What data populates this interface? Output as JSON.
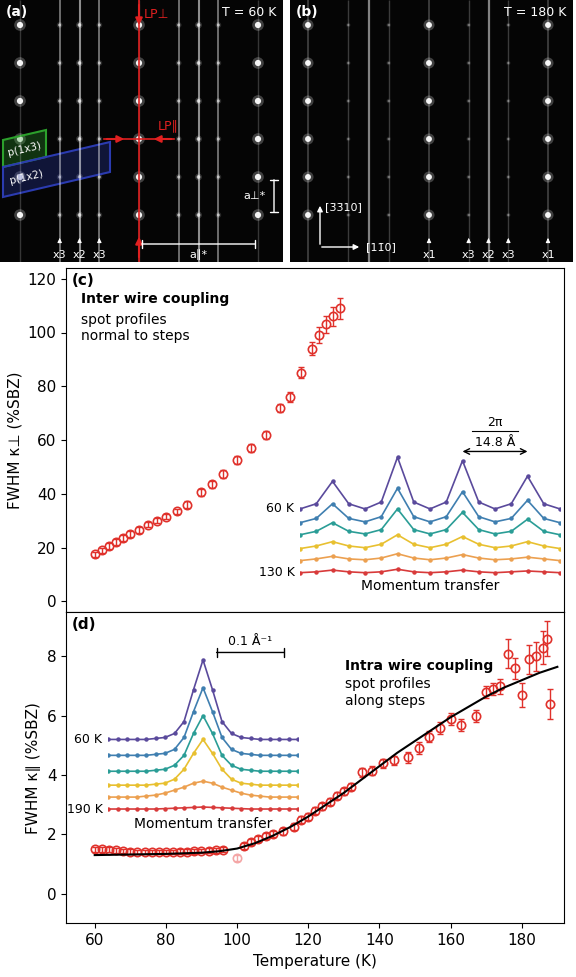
{
  "panels": [
    {
      "label": "(a)",
      "temperature": "T = 60 K",
      "line_profiles": [
        "LP⊥",
        "LP∥"
      ],
      "reciprocal_vectors": [
        "a∥*",
        "a⊥*"
      ],
      "domains": [
        {
          "text": "p(1x3)",
          "color": "#2ca02c"
        },
        {
          "text": "p(1x2)",
          "color": "#2b3bb0"
        }
      ],
      "streak_labels": [
        "x3",
        "x2",
        "x3"
      ]
    },
    {
      "label": "(b)",
      "temperature": "T = 180 K",
      "directions": [
        "[3̄3̄10]",
        "[11̄0]"
      ],
      "streak_labels": [
        "x1",
        "x3",
        "x2",
        "x3",
        "x1"
      ]
    }
  ],
  "chart_data": [
    {
      "type": "scatter",
      "panel": "(c)",
      "title": "Inter wire coupling",
      "subtitle": "spot profiles\nnormal to steps",
      "y_label": "FWHM κ⊥ (%SBZ)",
      "xlim": [
        52,
        192
      ],
      "xticks": [
        60,
        80,
        100,
        120,
        140,
        160,
        180
      ],
      "ylim": [
        -4,
        124
      ],
      "yticks": [
        0,
        20,
        40,
        60,
        80,
        100,
        120
      ],
      "tick_labels": "y",
      "series": [
        {
          "color": "#e0312b",
          "marker": "circle",
          "x": [
            60,
            62,
            64,
            66,
            68,
            70,
            72.5,
            75,
            77.5,
            80,
            83,
            86,
            90,
            93,
            96,
            100,
            104,
            108,
            112,
            115,
            118,
            121,
            123,
            125,
            127,
            129
          ],
          "values": [
            17.5,
            19,
            20.5,
            22,
            23.5,
            25,
            26.5,
            28.5,
            30,
            31.5,
            33.5,
            36,
            40.5,
            43.5,
            47.5,
            52.5,
            57,
            62,
            72,
            76,
            85,
            94,
            99,
            103,
            106,
            109
          ],
          "errors": [
            1,
            1,
            1,
            1,
            1,
            1,
            1,
            1,
            1,
            1,
            1,
            1.2,
            1.2,
            1.2,
            1.5,
            1.5,
            1.5,
            1.5,
            1.5,
            2,
            2,
            2.5,
            3,
            3,
            3.5,
            4
          ]
        }
      ],
      "inset": {
        "type": "line",
        "marker": "circle",
        "tick_labels": false,
        "x_label": "Momentum transfer",
        "temperature_labels": [
          "60 K",
          "130 K"
        ],
        "spacing_label": {
          "numerator": "2π",
          "denominator": "14.8 Å"
        },
        "x": [
          0,
          2.5,
          5,
          7.5,
          10,
          12.5,
          15,
          17.5,
          20,
          22.5,
          25,
          27.5,
          30,
          32.5,
          35,
          37.5,
          40
        ],
        "series": [
          {
            "color": "#5a4a9c",
            "values": [
              5.0,
              5.3,
              6.6,
              5.3,
              5.0,
              5.4,
              8.0,
              5.4,
              5.0,
              5.4,
              7.8,
              5.4,
              5.0,
              5.3,
              6.9,
              5.3,
              5.0
            ]
          },
          {
            "color": "#3f7fb0",
            "values": [
              4.2,
              4.45,
              5.3,
              4.45,
              4.25,
              4.55,
              6.2,
              4.55,
              4.25,
              4.55,
              6.0,
              4.55,
              4.25,
              4.45,
              5.5,
              4.45,
              4.2
            ]
          },
          {
            "color": "#2a9d96",
            "values": [
              3.5,
              3.7,
              4.2,
              3.7,
              3.55,
              3.8,
              5.0,
              3.8,
              3.55,
              3.8,
              4.8,
              3.8,
              3.55,
              3.7,
              4.4,
              3.7,
              3.5
            ]
          },
          {
            "color": "#e8c030",
            "values": [
              2.7,
              2.85,
              3.1,
              2.85,
              2.75,
              2.95,
              3.5,
              2.95,
              2.75,
              2.95,
              3.4,
              2.95,
              2.75,
              2.85,
              3.1,
              2.85,
              2.7
            ]
          },
          {
            "color": "#eca050",
            "values": [
              2.0,
              2.1,
              2.25,
              2.1,
              2.05,
              2.15,
              2.4,
              2.15,
              2.05,
              2.15,
              2.35,
              2.15,
              2.05,
              2.1,
              2.2,
              2.1,
              2.0
            ]
          },
          {
            "color": "#d83a3a",
            "values": [
              1.3,
              1.35,
              1.45,
              1.35,
              1.3,
              1.35,
              1.5,
              1.35,
              1.3,
              1.35,
              1.45,
              1.35,
              1.3,
              1.35,
              1.4,
              1.35,
              1.3
            ]
          }
        ]
      }
    },
    {
      "type": "scatter",
      "panel": "(d)",
      "title": "Intra wire coupling",
      "subtitle": "spot profiles\nalong steps",
      "x_label": "Temperature (K)",
      "y_label": "FWHM κ∥ (%SBZ)",
      "xlim": [
        52,
        192
      ],
      "xticks": [
        60,
        80,
        100,
        120,
        140,
        160,
        180
      ],
      "ylim": [
        -1,
        9.5
      ],
      "yticks": [
        0,
        2,
        4,
        6,
        8
      ],
      "series": [
        {
          "type": "scatter",
          "color": "#e0312b",
          "marker": "circle",
          "x": [
            60,
            62,
            64,
            66,
            68,
            70,
            72,
            74,
            76,
            78,
            80,
            82,
            84,
            86,
            88,
            90,
            92,
            94,
            96,
            102,
            104,
            106,
            108,
            110,
            113,
            116,
            118,
            120,
            122,
            124,
            126,
            128,
            130,
            132,
            135,
            138,
            141,
            144,
            148,
            151,
            154,
            157,
            160,
            163,
            167,
            170,
            172,
            174,
            176,
            178,
            180,
            182,
            184,
            186,
            187,
            188
          ],
          "values": [
            1.5,
            1.5,
            1.48,
            1.46,
            1.44,
            1.42,
            1.4,
            1.4,
            1.4,
            1.4,
            1.4,
            1.4,
            1.42,
            1.42,
            1.43,
            1.44,
            1.45,
            1.46,
            1.48,
            1.6,
            1.75,
            1.85,
            1.95,
            2.0,
            2.1,
            2.25,
            2.5,
            2.6,
            2.8,
            2.95,
            3.1,
            3.3,
            3.45,
            3.6,
            4.1,
            4.15,
            4.4,
            4.5,
            4.6,
            4.9,
            5.3,
            5.6,
            5.9,
            5.7,
            6.0,
            6.8,
            6.9,
            7.0,
            8.1,
            7.6,
            6.7,
            7.9,
            8.0,
            8.3,
            8.6,
            6.4
          ],
          "errors": [
            0.08,
            0.08,
            0.08,
            0.08,
            0.08,
            0.08,
            0.08,
            0.08,
            0.08,
            0.08,
            0.08,
            0.08,
            0.08,
            0.08,
            0.08,
            0.08,
            0.08,
            0.08,
            0.08,
            0.1,
            0.1,
            0.1,
            0.1,
            0.1,
            0.12,
            0.12,
            0.12,
            0.12,
            0.12,
            0.12,
            0.12,
            0.12,
            0.12,
            0.12,
            0.15,
            0.15,
            0.15,
            0.15,
            0.18,
            0.2,
            0.2,
            0.2,
            0.2,
            0.2,
            0.2,
            0.2,
            0.2,
            0.25,
            0.5,
            0.35,
            0.4,
            0.5,
            0.5,
            0.55,
            0.6,
            0.5
          ]
        },
        {
          "type": "scatter",
          "color": "#f4a6a6",
          "marker": "circle",
          "x": [
            100
          ],
          "values": [
            1.2
          ],
          "errors": [
            0.1
          ]
        },
        {
          "type": "line",
          "color": "#000000",
          "x": [
            60,
            65,
            70,
            75,
            80,
            85,
            90,
            95,
            100,
            105,
            110,
            115,
            120,
            125,
            130,
            135,
            140,
            145,
            150,
            155,
            160,
            165,
            170,
            175,
            180,
            185,
            190
          ],
          "values": [
            1.3,
            1.31,
            1.32,
            1.33,
            1.34,
            1.36,
            1.38,
            1.43,
            1.52,
            1.7,
            1.95,
            2.25,
            2.6,
            3.0,
            3.4,
            3.85,
            4.3,
            4.75,
            5.15,
            5.55,
            5.95,
            6.3,
            6.65,
            6.95,
            7.2,
            7.45,
            7.65
          ]
        }
      ],
      "inset": {
        "type": "line",
        "marker": "circle",
        "tick_labels": false,
        "x_label": "Momentum transfer",
        "temperature_labels": [
          "60 K",
          "190 K"
        ],
        "scale_bar": {
          "length": 0.1,
          "label": "0.1 Å⁻¹"
        },
        "x": [
          -0.14,
          -0.126,
          -0.112,
          -0.098,
          -0.084,
          -0.07,
          -0.056,
          -0.042,
          -0.028,
          -0.014,
          0,
          0.014,
          0.028,
          0.042,
          0.056,
          0.07,
          0.084,
          0.098,
          0.112,
          0.126,
          0.14
        ],
        "series": [
          {
            "color": "#5a4a9c",
            "values": [
              5.0,
              5.0,
              5.0,
              5.0,
              5.0,
              5.05,
              5.1,
              5.3,
              5.9,
              7.5,
              9.0,
              7.5,
              5.9,
              5.3,
              5.1,
              5.05,
              5.0,
              5.0,
              5.0,
              5.0,
              5.0
            ]
          },
          {
            "color": "#3f7fb0",
            "values": [
              4.2,
              4.2,
              4.2,
              4.2,
              4.2,
              4.25,
              4.3,
              4.5,
              5.1,
              6.4,
              7.6,
              6.4,
              5.1,
              4.5,
              4.3,
              4.25,
              4.2,
              4.2,
              4.2,
              4.2,
              4.2
            ]
          },
          {
            "color": "#2a9d96",
            "values": [
              3.4,
              3.4,
              3.4,
              3.4,
              3.4,
              3.45,
              3.5,
              3.7,
              4.2,
              5.3,
              6.2,
              5.3,
              4.2,
              3.7,
              3.5,
              3.45,
              3.4,
              3.4,
              3.4,
              3.4,
              3.4
            ]
          },
          {
            "color": "#e8c030",
            "values": [
              2.7,
              2.7,
              2.7,
              2.7,
              2.7,
              2.75,
              2.8,
              3.0,
              3.5,
              4.3,
              5.0,
              4.3,
              3.5,
              3.0,
              2.8,
              2.75,
              2.7,
              2.7,
              2.7,
              2.7,
              2.7
            ]
          },
          {
            "color": "#eca050",
            "values": [
              2.1,
              2.1,
              2.1,
              2.1,
              2.15,
              2.2,
              2.3,
              2.45,
              2.6,
              2.8,
              2.9,
              2.8,
              2.6,
              2.45,
              2.3,
              2.2,
              2.15,
              2.1,
              2.1,
              2.1,
              2.1
            ]
          },
          {
            "color": "#d83a3a",
            "values": [
              1.5,
              1.5,
              1.5,
              1.5,
              1.5,
              1.5,
              1.52,
              1.54,
              1.56,
              1.58,
              1.6,
              1.58,
              1.56,
              1.54,
              1.52,
              1.5,
              1.5,
              1.5,
              1.5,
              1.5,
              1.5
            ]
          }
        ]
      }
    }
  ]
}
